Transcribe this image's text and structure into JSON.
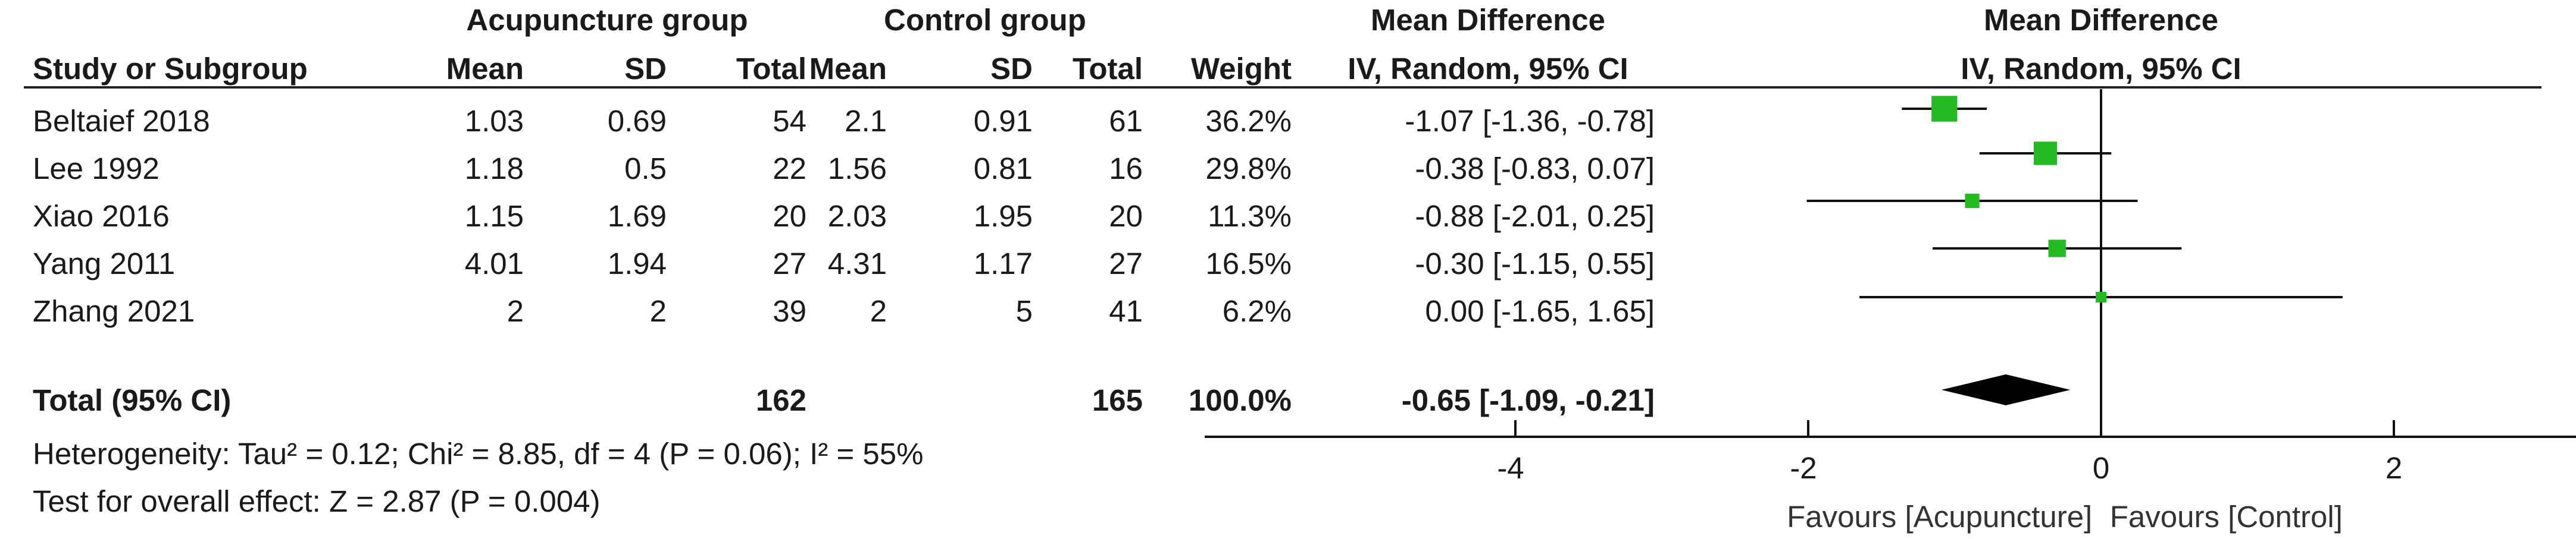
{
  "header": {
    "group1": "Acupuncture group",
    "group2": "Control group",
    "md_title": "Mean Difference",
    "md_subtitle": "IV, Random, 95% CI",
    "plot_title": "Mean Difference",
    "plot_subtitle": "IV, Random, 95% CI",
    "study_col": "Study or Subgroup",
    "mean1": "Mean",
    "sd1": "SD",
    "total1": "Total",
    "mean2": "Mean",
    "sd2": "SD",
    "total2": "Total",
    "weight": "Weight"
  },
  "studies": [
    {
      "name": "Beltaief 2018",
      "mean1": "1.03",
      "sd1": "0.69",
      "total1": "54",
      "mean2": "2.1",
      "sd2": "0.91",
      "total2": "61",
      "weight": "36.2%",
      "ci_text": "-1.07 [-1.36, -0.78]"
    },
    {
      "name": "Lee 1992",
      "mean1": "1.18",
      "sd1": "0.5",
      "total1": "22",
      "mean2": "1.56",
      "sd2": "0.81",
      "total2": "16",
      "weight": "29.8%",
      "ci_text": "-0.38 [-0.83, 0.07]"
    },
    {
      "name": "Xiao 2016",
      "mean1": "1.15",
      "sd1": "1.69",
      "total1": "20",
      "mean2": "2.03",
      "sd2": "1.95",
      "total2": "20",
      "weight": "11.3%",
      "ci_text": "-0.88 [-2.01, 0.25]"
    },
    {
      "name": "Yang 2011",
      "mean1": "4.01",
      "sd1": "1.94",
      "total1": "27",
      "mean2": "4.31",
      "sd2": "1.17",
      "total2": "27",
      "weight": "16.5%",
      "ci_text": "-0.30 [-1.15, 0.55]"
    },
    {
      "name": "Zhang 2021",
      "mean1": "2",
      "sd1": "2",
      "total1": "39",
      "mean2": "2",
      "sd2": "5",
      "total2": "41",
      "weight": "6.2%",
      "ci_text": "0.00 [-1.65, 1.65]"
    }
  ],
  "total": {
    "label": "Total (95% CI)",
    "total1": "162",
    "total2": "165",
    "weight": "100.0%",
    "ci_text": "-0.65 [-1.09, -0.21]"
  },
  "heterogeneity": "Heterogeneity: Tau² = 0.12; Chi² = 8.85, df = 4 (P = 0.06); I² = 55%",
  "overall_effect": "Test for overall effect: Z = 2.87 (P = 0.004)",
  "favours_left": "Favours [Acupuncture]",
  "favours_right": "Favours [Control]",
  "chart_data": {
    "type": "forest",
    "title": "Mean Difference",
    "subtitle": "IV, Random, 95% CI",
    "xlim": [
      -6,
      6
    ],
    "xticks": [
      "-4",
      "-2",
      "0",
      "2",
      "4"
    ],
    "reference_line": 0,
    "marker_color": "#22bb22",
    "summary_color": "#000000",
    "studies": [
      {
        "name": "Beltaief 2018",
        "md": -1.07,
        "lo": -1.36,
        "hi": -0.78,
        "weight": 36.2
      },
      {
        "name": "Lee 1992",
        "md": -0.38,
        "lo": -0.83,
        "hi": 0.07,
        "weight": 29.8
      },
      {
        "name": "Xiao 2016",
        "md": -0.88,
        "lo": -2.01,
        "hi": 0.25,
        "weight": 11.3
      },
      {
        "name": "Yang 2011",
        "md": -0.3,
        "lo": -1.15,
        "hi": 0.55,
        "weight": 16.5
      },
      {
        "name": "Zhang 2021",
        "md": 0.0,
        "lo": -1.65,
        "hi": 1.65,
        "weight": 6.2
      }
    ],
    "overall": {
      "md": -0.65,
      "lo": -1.09,
      "hi": -0.21
    }
  }
}
